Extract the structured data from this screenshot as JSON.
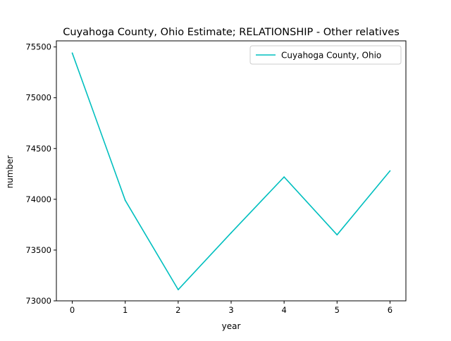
{
  "chart_data": {
    "type": "line",
    "title": "Cuyahoga County, Ohio Estimate; RELATIONSHIP - Other relatives",
    "xlabel": "year",
    "ylabel": "number",
    "x": [
      0,
      1,
      2,
      3,
      4,
      5,
      6
    ],
    "xlim": [
      -0.3,
      6.3
    ],
    "ylim": [
      73000,
      75560
    ],
    "xticks": [
      0,
      1,
      2,
      3,
      4,
      5,
      6
    ],
    "yticks": [
      73000,
      73500,
      74000,
      74500,
      75000,
      75500
    ],
    "grid": false,
    "legend_position": "top-right",
    "series": [
      {
        "name": "Cuyahoga County, Ohio",
        "color": "#00bfbf",
        "values": [
          75440,
          73990,
          73110,
          73670,
          74220,
          73650,
          74280
        ]
      }
    ]
  }
}
